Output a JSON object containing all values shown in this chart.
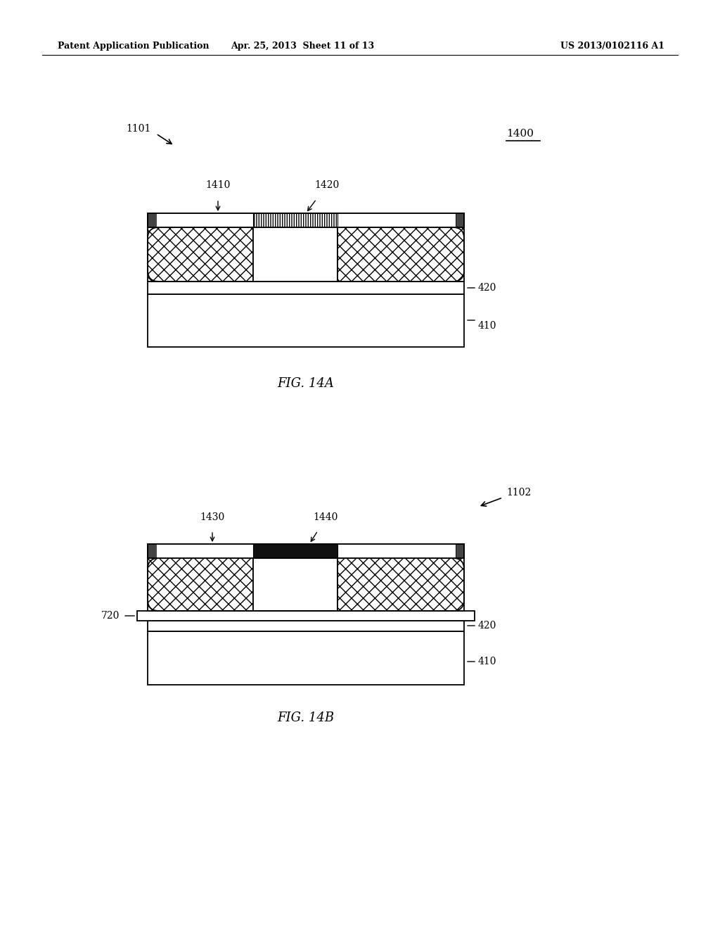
{
  "header_left": "Patent Application Publication",
  "header_mid": "Apr. 25, 2013  Sheet 11 of 13",
  "header_right": "US 2013/0102116 A1",
  "fig14a_label": "FIG. 14A",
  "fig14b_label": "FIG. 14B",
  "label_1101": "1101",
  "label_1102": "1102",
  "label_1400": "1400",
  "label_1410": "1410",
  "label_1420": "1420",
  "label_1430": "1430",
  "label_1440": "1440",
  "label_420": "420",
  "label_410": "410",
  "label_720": "720",
  "bg_color": "#ffffff",
  "lc": "#000000",
  "dark_gray": "#444444",
  "mid_gray": "#888888",
  "black": "#111111"
}
